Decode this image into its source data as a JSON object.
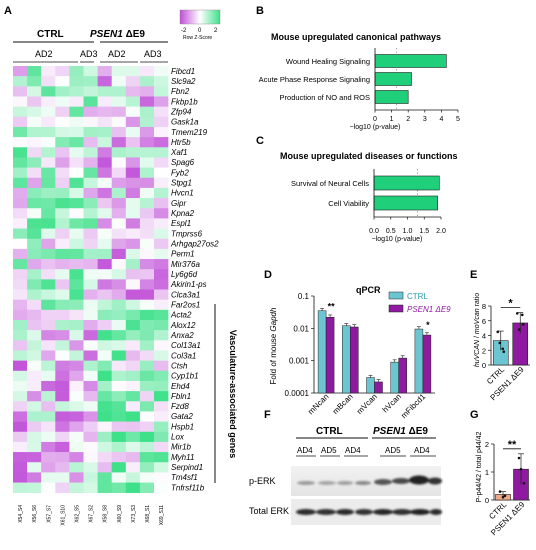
{
  "panels": {
    "A": "A",
    "B": "B",
    "C": "C",
    "D": "D",
    "E": "E",
    "F": "F",
    "G": "G"
  },
  "heatmap": {
    "group_ctrl": "CTRL",
    "group_psen_gene": "PSEN1",
    "group_psen_mut": " ΔE9",
    "subgroups": [
      "AD2",
      "AD3",
      "AD2",
      "AD3"
    ],
    "legend_ticks": [
      "-2",
      "0",
      "2"
    ],
    "legend_title": "Row Z-Score",
    "genes": [
      "Fibcd1",
      "Slc9a2",
      "Fbn2",
      "Fkbp1b",
      "Zfp94",
      "Gask1a",
      "Tmem219",
      "Htr5b",
      "Xaf1",
      "Spag6",
      "Fyb2",
      "Stpg1",
      "Hvcn1",
      "Gipr",
      "Kpna2",
      "Espl1",
      "Tmprss6",
      "Arhgap27os2",
      "Perm1",
      "Mir376a",
      "Ly6g6d",
      "Akirin1-ps",
      "Clca3a1",
      "Far2os1",
      "Acta2",
      "Alox12",
      "Anxa2",
      "Col13a1",
      "Col3a1",
      "Ctsh",
      "Cyp1b1",
      "Ehd4",
      "Fbln1",
      "Fzd8",
      "Gata2",
      "Hspb1",
      "Lox",
      "Mir1b",
      "Myh11",
      "Serpind1",
      "Tm4sf1",
      "Tnfrsf11b"
    ],
    "samples": [
      "X54_S4",
      "X56_S6",
      "X57_S7",
      "X61_S10",
      "X62_S5",
      "X67_S2",
      "X58_S8",
      "X60_S9",
      "X73_S3",
      "X68_S1",
      "X69_S11"
    ],
    "bracket_label": "Vasculature-associated genes",
    "colors": {
      "low": "#c04fd8",
      "mid": "#ffffff",
      "high": "#3ee08a"
    }
  },
  "chart_data": [
    {
      "panel": "B",
      "type": "bar",
      "orientation": "horizontal",
      "title": "Mouse upregulated canonical pathways",
      "categories": [
        "Wound Healing Signaling",
        "Acute Phase Response Signaling",
        "Production of NO and ROS"
      ],
      "values": [
        4.3,
        2.2,
        2.0
      ],
      "xlabel": "−log10 (p-value)",
      "xticks": [
        "0",
        "1",
        "2",
        "3",
        "4",
        "5"
      ],
      "xlim": [
        0,
        5
      ],
      "threshold": 1.3,
      "color": "#1fcf7a"
    },
    {
      "panel": "C",
      "type": "bar",
      "orientation": "horizontal",
      "title": "Mouse upregulated diseases or functions",
      "categories": [
        "Survival of Neural Cells",
        "Cell Viability"
      ],
      "values": [
        1.95,
        1.9
      ],
      "xlabel": "−log10 (p-value)",
      "xticks": [
        "0.0",
        "0.5",
        "1.0",
        "1.5",
        "2.0"
      ],
      "xlim": [
        0,
        2
      ],
      "threshold": 1.3,
      "color": "#1fcf7a"
    },
    {
      "panel": "D",
      "type": "bar",
      "title": "qPCR",
      "ylabel_prefix": "Fold of mouse ",
      "ylabel_gene": "Gapdh",
      "yscale": "log",
      "ylim": [
        0.0001,
        0.1
      ],
      "yticks": [
        "0.1",
        "0.01",
        "0.001",
        "0.0001"
      ],
      "categories": [
        "mNcan",
        "mBcan",
        "mVcan",
        "hVcan",
        "mFibcd1"
      ],
      "series": [
        {
          "name": "CTRL",
          "values": [
            0.035,
            0.012,
            0.0003,
            0.0009,
            0.0095
          ],
          "color": "#6cc6d2"
        },
        {
          "name": "PSEN1 ΔE9",
          "values": [
            0.022,
            0.011,
            0.00022,
            0.0012,
            0.0062
          ],
          "color": "#8e1aa0"
        }
      ],
      "significance": [
        {
          "category": "mNcan",
          "label": "**"
        },
        {
          "category": "mFibcd1",
          "label": "*"
        }
      ]
    },
    {
      "panel": "E",
      "type": "bar",
      "ylabel_hv": "huVCAN",
      "ylabel_sep": " / ",
      "ylabel_mv": "moVcan",
      "ylabel_suffix": " ratio",
      "categories": [
        "CTRL",
        "PSEN1 ΔE9"
      ],
      "values": [
        3.3,
        5.7
      ],
      "errors": [
        1.3,
        1.4
      ],
      "ylim": [
        0,
        8
      ],
      "yticks": [
        "0",
        "2",
        "4",
        "6",
        "8"
      ],
      "colors": [
        "#6cc6d2",
        "#8e1aa0"
      ],
      "significance": "*"
    },
    {
      "panel": "G",
      "type": "bar",
      "ylabel": "P-p44/42 / total p44/42",
      "categories": [
        "CTRL",
        "PSEN1 ΔE9"
      ],
      "values": [
        0.2,
        1.1
      ],
      "errors": [
        0.1,
        0.55
      ],
      "ylim": [
        0,
        2
      ],
      "yticks": [
        "0",
        "1",
        "2"
      ],
      "colors": [
        "#f0a88a",
        "#8e1aa0"
      ],
      "significance": "**"
    }
  ],
  "blot": {
    "group_ctrl": "CTRL",
    "group_psen_gene": "PSEN1",
    "group_psen_mut": " ΔE9",
    "lanes_ctrl": [
      "AD4",
      "AD5",
      "AD4"
    ],
    "lanes_psen": [
      "AD5",
      "AD4"
    ],
    "row1": "p-ERK",
    "row2": "Total ERK"
  }
}
